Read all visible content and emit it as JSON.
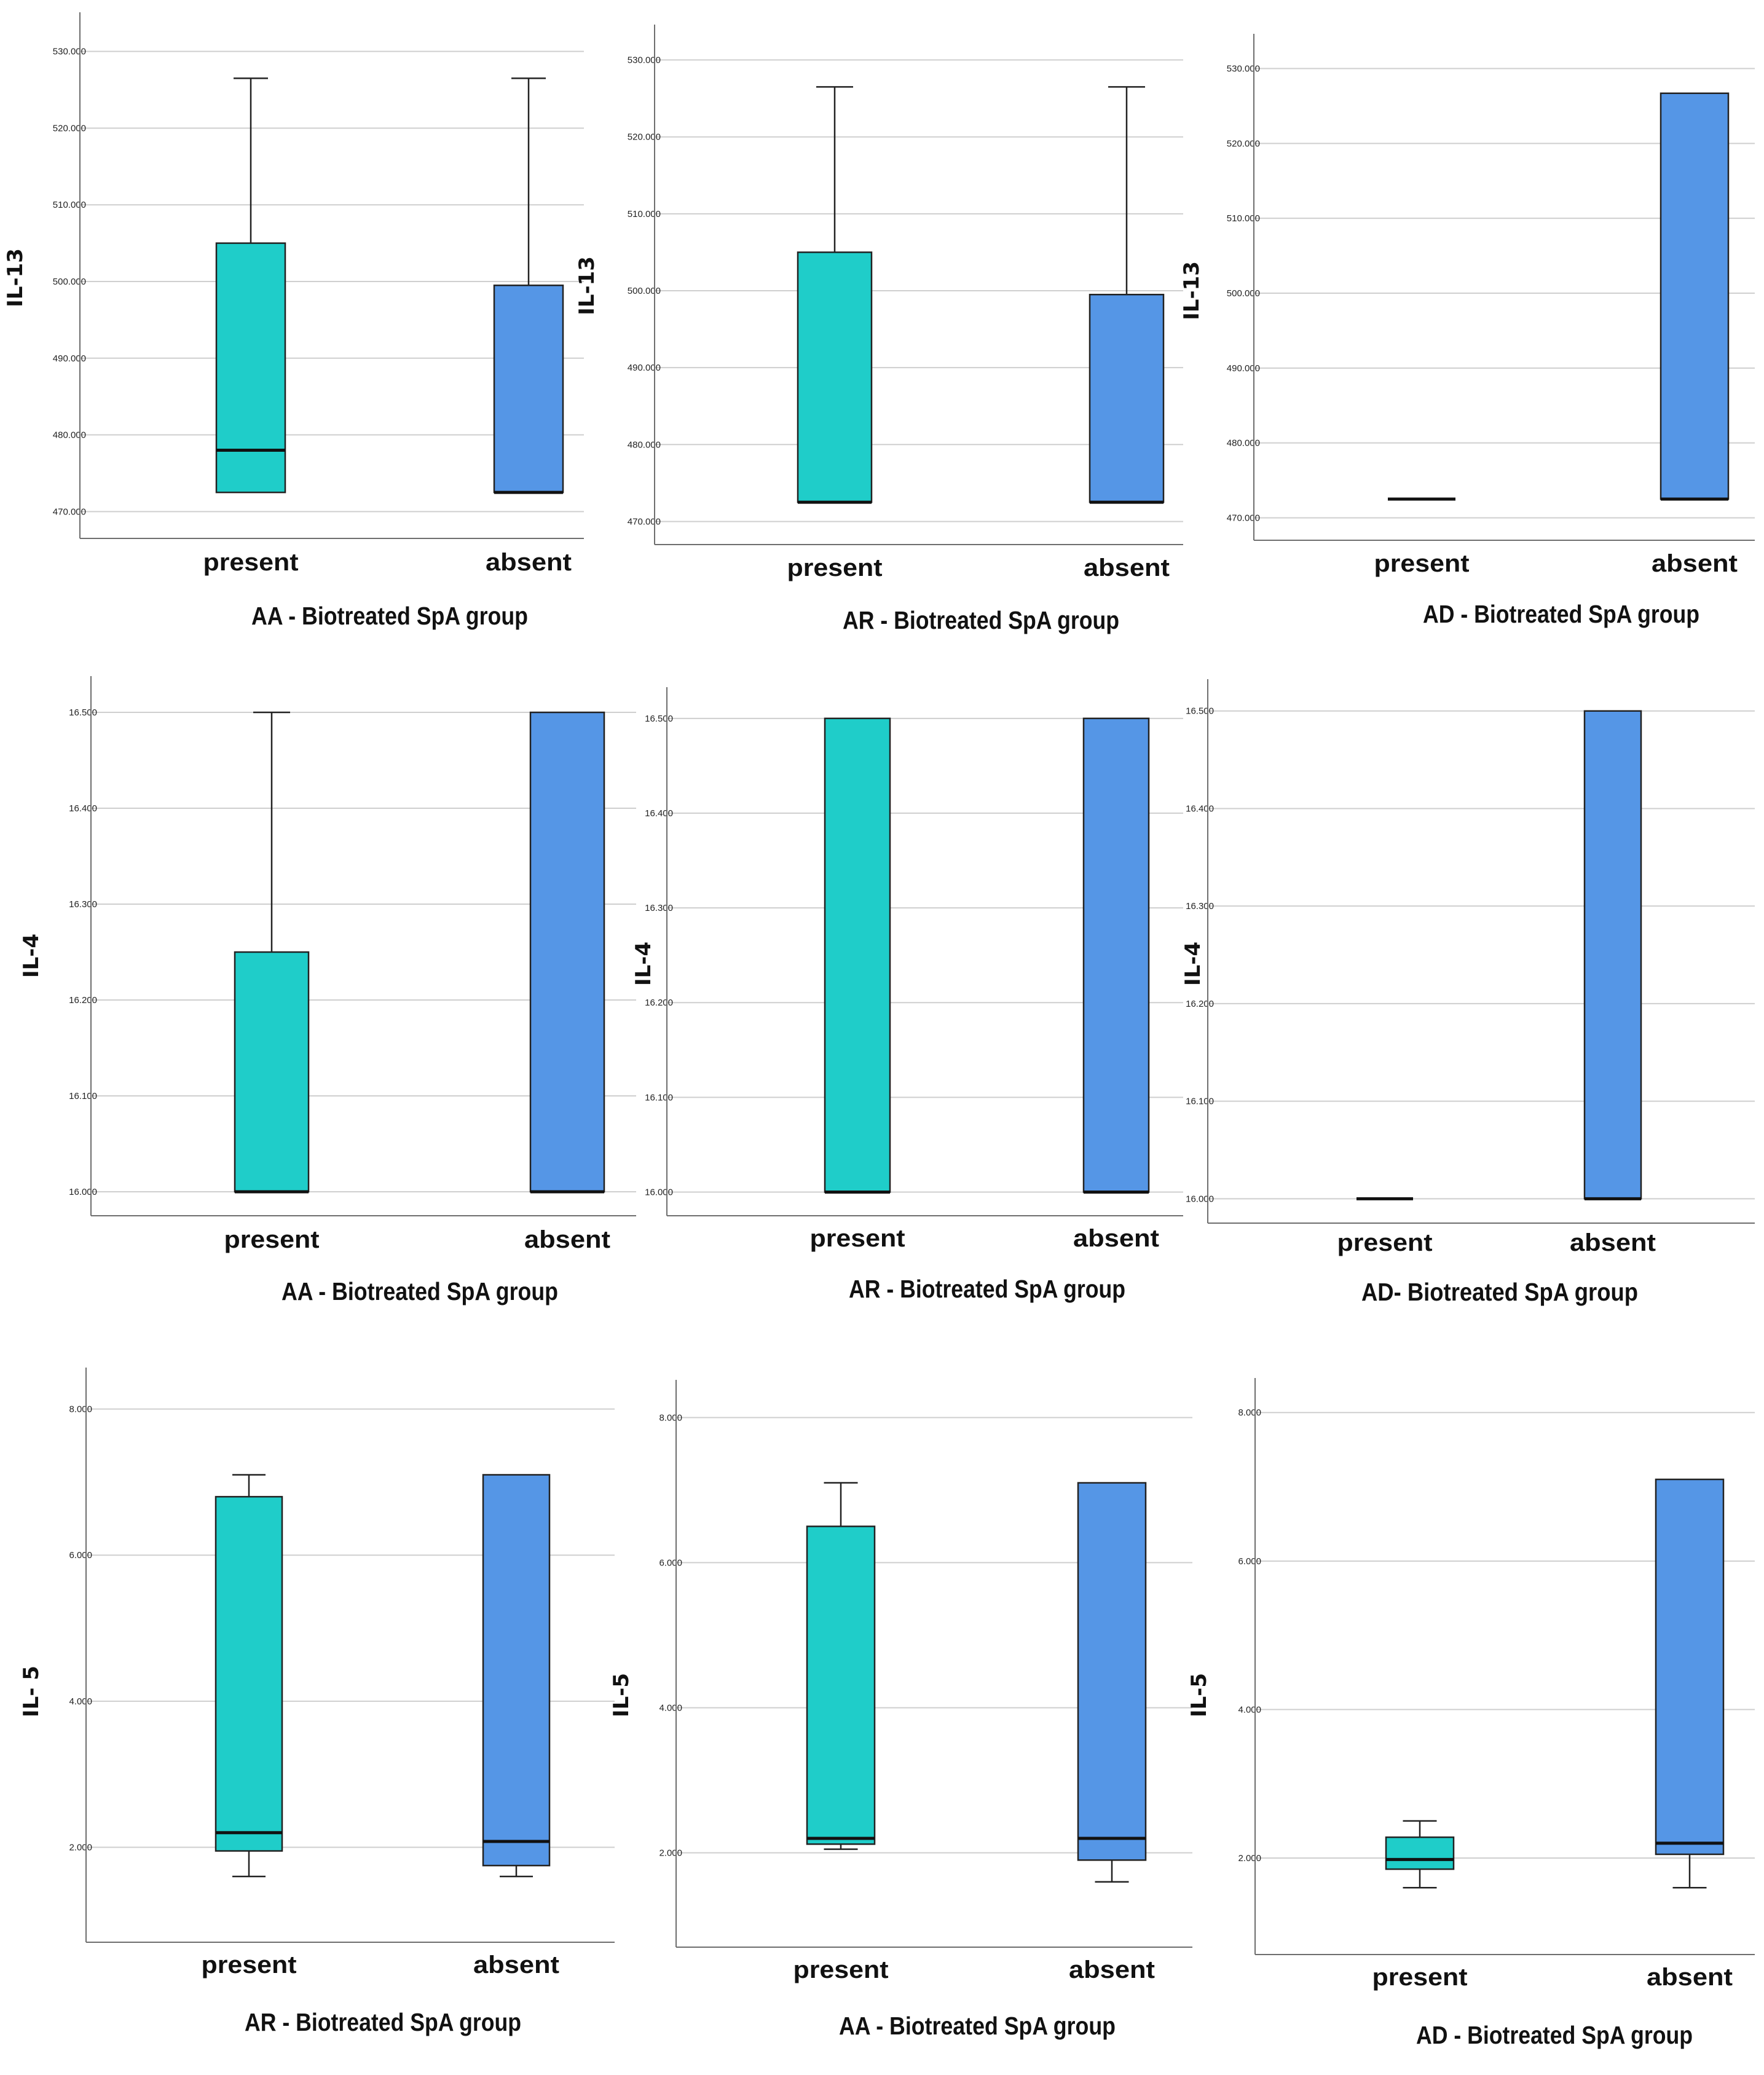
{
  "colors": {
    "present": "#1fcdc9",
    "absent": "#5596e6",
    "grid": "#cfcfcf",
    "axis": "#6e6e6e",
    "outline": "#222222"
  },
  "chart_data": [
    {
      "type": "boxplot",
      "title": "",
      "xlabel": "AA - Biotreated SpA group",
      "ylabel": "IL-13",
      "categories": [
        "present",
        "absent"
      ],
      "ticks": [
        470,
        480,
        490,
        500,
        510,
        520,
        530
      ],
      "tick_labels": [
        "470.000",
        "480.000",
        "490.000",
        "500.000",
        "510.000",
        "520.000",
        "530.000"
      ],
      "ylim": [
        466.5,
        533.5
      ],
      "boxes": [
        {
          "name": "present",
          "min": 472.5,
          "q1": 472.5,
          "median": 478,
          "q3": 505,
          "max": 526.5
        },
        {
          "name": "absent",
          "min": 472.5,
          "q1": 472.5,
          "median": 472.5,
          "q3": 499.5,
          "max": 526.5
        }
      ]
    },
    {
      "type": "boxplot",
      "title": "",
      "xlabel": "AR - Biotreated SpA group",
      "ylabel": "IL-13",
      "categories": [
        "present",
        "absent"
      ],
      "ticks": [
        470,
        480,
        490,
        500,
        510,
        520,
        530
      ],
      "tick_labels": [
        "470.000",
        "480.000",
        "490.000",
        "500.000",
        "510.000",
        "520.000",
        "530.000"
      ],
      "ylim": [
        467,
        533
      ],
      "boxes": [
        {
          "name": "present",
          "min": 472.5,
          "q1": 472.5,
          "median": 472.5,
          "q3": 505,
          "max": 526.5
        },
        {
          "name": "absent",
          "min": 472.5,
          "q1": 472.5,
          "median": 472.5,
          "q3": 499.5,
          "max": 526.5
        }
      ]
    },
    {
      "type": "boxplot",
      "title": "",
      "xlabel": "AD - Biotreated SpA group",
      "ylabel": "IL-13",
      "categories": [
        "present",
        "absent"
      ],
      "ticks": [
        470,
        480,
        490,
        500,
        510,
        520,
        530
      ],
      "tick_labels": [
        "470.000",
        "480.000",
        "490.000",
        "500.000",
        "510.000",
        "520.000",
        "530.000"
      ],
      "ylim": [
        467,
        533
      ],
      "boxes": [
        {
          "name": "present",
          "min": 472.5,
          "q1": 472.5,
          "median": 472.5,
          "q3": 472.5,
          "max": 472.5
        },
        {
          "name": "absent",
          "min": 472.5,
          "q1": 472.5,
          "median": 472.5,
          "q3": 526.7,
          "max": 526.7
        }
      ]
    },
    {
      "type": "boxplot",
      "title": "",
      "xlabel": "AA - Biotreated SpA group",
      "ylabel": "IL-4",
      "categories": [
        "present",
        "absent"
      ],
      "ticks": [
        16.0,
        16.1,
        16.2,
        16.3,
        16.4,
        16.5
      ],
      "tick_labels": [
        "16.000",
        "16.100",
        "16.200",
        "16.300",
        "16.400",
        "16.500"
      ],
      "ylim": [
        15.975,
        16.525
      ],
      "boxes": [
        {
          "name": "present",
          "min": 16.0,
          "q1": 16.0,
          "median": 16.0,
          "q3": 16.25,
          "max": 16.5
        },
        {
          "name": "absent",
          "min": 16.0,
          "q1": 16.0,
          "median": 16.0,
          "q3": 16.5,
          "max": 16.5
        }
      ]
    },
    {
      "type": "boxplot",
      "title": "",
      "xlabel": "AR - Biotreated SpA group",
      "ylabel": "IL-4",
      "categories": [
        "present",
        "absent"
      ],
      "ticks": [
        16.0,
        16.1,
        16.2,
        16.3,
        16.4,
        16.5
      ],
      "tick_labels": [
        "16.000",
        "16.100",
        "16.200",
        "16.300",
        "16.400",
        "16.500"
      ],
      "ylim": [
        15.975,
        16.52
      ],
      "boxes": [
        {
          "name": "present",
          "min": 16.0,
          "q1": 16.0,
          "median": 16.0,
          "q3": 16.5,
          "max": 16.5
        },
        {
          "name": "absent",
          "min": 16.0,
          "q1": 16.0,
          "median": 16.0,
          "q3": 16.5,
          "max": 16.5
        }
      ]
    },
    {
      "type": "boxplot",
      "title": "",
      "xlabel": "AD- Biotreated SpA group",
      "ylabel": "IL-4",
      "categories": [
        "present",
        "absent"
      ],
      "ticks": [
        16.0,
        16.1,
        16.2,
        16.3,
        16.4,
        16.5
      ],
      "tick_labels": [
        "16.000",
        "16.100",
        "16.200",
        "16.300",
        "16.400",
        "16.500"
      ],
      "ylim": [
        15.975,
        16.52
      ],
      "boxes": [
        {
          "name": "present",
          "min": 16.0,
          "q1": 16.0,
          "median": 16.0,
          "q3": 16.0,
          "max": 16.0
        },
        {
          "name": "absent",
          "min": 16.0,
          "q1": 16.0,
          "median": 16.0,
          "q3": 16.5,
          "max": 16.5
        }
      ]
    },
    {
      "type": "boxplot",
      "title": "",
      "xlabel": "AR - Biotreated SpA group",
      "ylabel": "IL- 5",
      "categories": [
        "present",
        "absent"
      ],
      "ticks": [
        2,
        4,
        6,
        8
      ],
      "tick_labels": [
        "2.000",
        "4.000",
        "6.000",
        "8.000"
      ],
      "ylim": [
        0.7,
        8.4
      ],
      "boxes": [
        {
          "name": "present",
          "min": 1.6,
          "q1": 1.95,
          "median": 2.2,
          "q3": 6.8,
          "max": 7.1
        },
        {
          "name": "absent",
          "min": 1.6,
          "q1": 1.75,
          "median": 2.08,
          "q3": 7.1,
          "max": 7.1
        }
      ]
    },
    {
      "type": "boxplot",
      "title": "",
      "xlabel": "AA - Biotreated SpA group",
      "ylabel": "IL-5",
      "categories": [
        "present",
        "absent"
      ],
      "ticks": [
        2,
        4,
        6,
        8
      ],
      "tick_labels": [
        "2.000",
        "4.000",
        "6.000",
        "8.000"
      ],
      "ylim": [
        0.7,
        8.35
      ],
      "boxes": [
        {
          "name": "present",
          "min": 2.05,
          "q1": 2.12,
          "median": 2.2,
          "q3": 6.5,
          "max": 7.1
        },
        {
          "name": "absent",
          "min": 1.6,
          "q1": 1.9,
          "median": 2.2,
          "q3": 7.1,
          "max": 7.1
        }
      ]
    },
    {
      "type": "boxplot",
      "title": "",
      "xlabel": "AD - Biotreated SpA group",
      "ylabel": "IL-5",
      "categories": [
        "present",
        "absent"
      ],
      "ticks": [
        2,
        4,
        6,
        8
      ],
      "tick_labels": [
        "2.000",
        "4.000",
        "6.000",
        "8.000"
      ],
      "ylim": [
        0.7,
        8.3
      ],
      "boxes": [
        {
          "name": "present",
          "min": 1.6,
          "q1": 1.85,
          "median": 1.98,
          "q3": 2.28,
          "max": 2.5
        },
        {
          "name": "absent",
          "min": 1.6,
          "q1": 2.05,
          "median": 2.2,
          "q3": 7.1,
          "max": 7.1
        }
      ]
    }
  ]
}
